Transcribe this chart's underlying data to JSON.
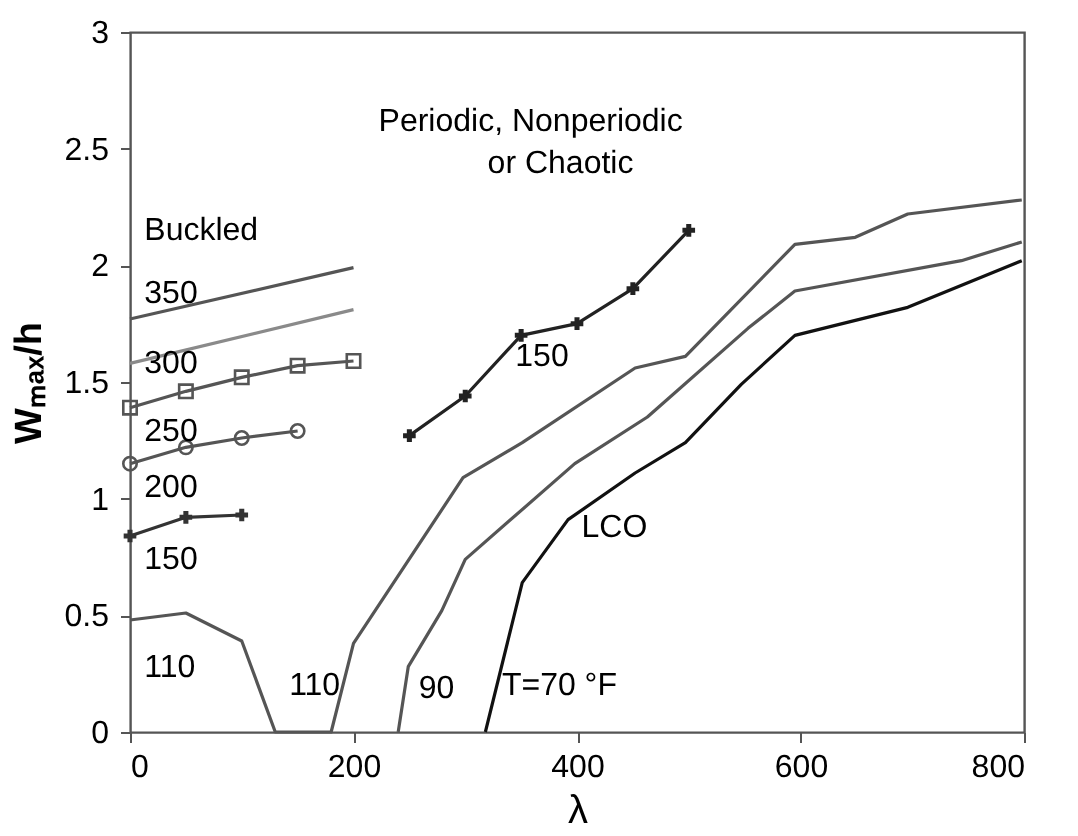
{
  "chart_data": {
    "type": "line",
    "xlabel": "λ",
    "ylabel": "Wₘₐₓ/h",
    "xlim": [
      0,
      800
    ],
    "ylim": [
      0,
      3
    ],
    "xticks": [
      0,
      200,
      400,
      600,
      800
    ],
    "yticks": [
      0,
      0.5,
      1,
      1.5,
      2,
      2.5,
      3
    ],
    "grid": false,
    "line_style": "solid",
    "series": [
      {
        "color": "#555555",
        "marker": "none",
        "x": [
          0,
          200
        ],
        "values": [
          1.77,
          1.99
        ]
      },
      {
        "color": "#8a8a8a",
        "marker": "none",
        "x": [
          0,
          200
        ],
        "values": [
          1.58,
          1.81
        ]
      },
      {
        "color": "#555555",
        "marker": "square",
        "x": [
          0,
          50,
          100,
          150,
          200
        ],
        "values": [
          1.39,
          1.46,
          1.52,
          1.57,
          1.59
        ]
      },
      {
        "color": "#555555",
        "marker": "circle",
        "x": [
          0,
          50,
          100,
          150
        ],
        "values": [
          1.15,
          1.22,
          1.26,
          1.29
        ]
      },
      {
        "color": "#333333",
        "marker": "cross",
        "x": [
          0,
          50,
          100
        ],
        "values": [
          0.84,
          0.92,
          0.93
        ]
      },
      {
        "color": "#555555",
        "marker": "none",
        "x": [
          0,
          50,
          100,
          130,
          180,
          200,
          298,
          351,
          452,
          497,
          595,
          649,
          696,
          798
        ],
        "values": [
          0.48,
          0.51,
          0.39,
          0,
          0,
          0.38,
          1.09,
          1.24,
          1.56,
          1.61,
          2.09,
          2.12,
          2.22,
          2.28
        ]
      },
      {
        "color": "#555555",
        "marker": "none",
        "x": [
          240,
          249,
          279,
          300,
          398,
          463,
          553,
          595,
          744,
          798
        ],
        "values": [
          0,
          0.28,
          0.52,
          0.74,
          1.15,
          1.35,
          1.73,
          1.89,
          2.02,
          2.1
        ]
      },
      {
        "color": "#111111",
        "marker": "none",
        "x": [
          318,
          351,
          392,
          452,
          497,
          547,
          595,
          696,
          798
        ],
        "values": [
          0,
          0.64,
          0.91,
          1.11,
          1.24,
          1.49,
          1.7,
          1.82,
          2.02
        ]
      },
      {
        "color": "#222222",
        "marker": "cross",
        "x": [
          250,
          300,
          350,
          400,
          450,
          500
        ],
        "values": [
          1.27,
          1.44,
          1.7,
          1.75,
          1.9,
          2.15
        ]
      }
    ],
    "annotations": [
      "Periodic, Nonperiodic",
      "or Chaotic",
      "Buckled",
      "350",
      "300",
      "250",
      "200",
      "150",
      "110",
      "110",
      "90",
      "T=70 °F",
      "LCO",
      "150"
    ]
  }
}
